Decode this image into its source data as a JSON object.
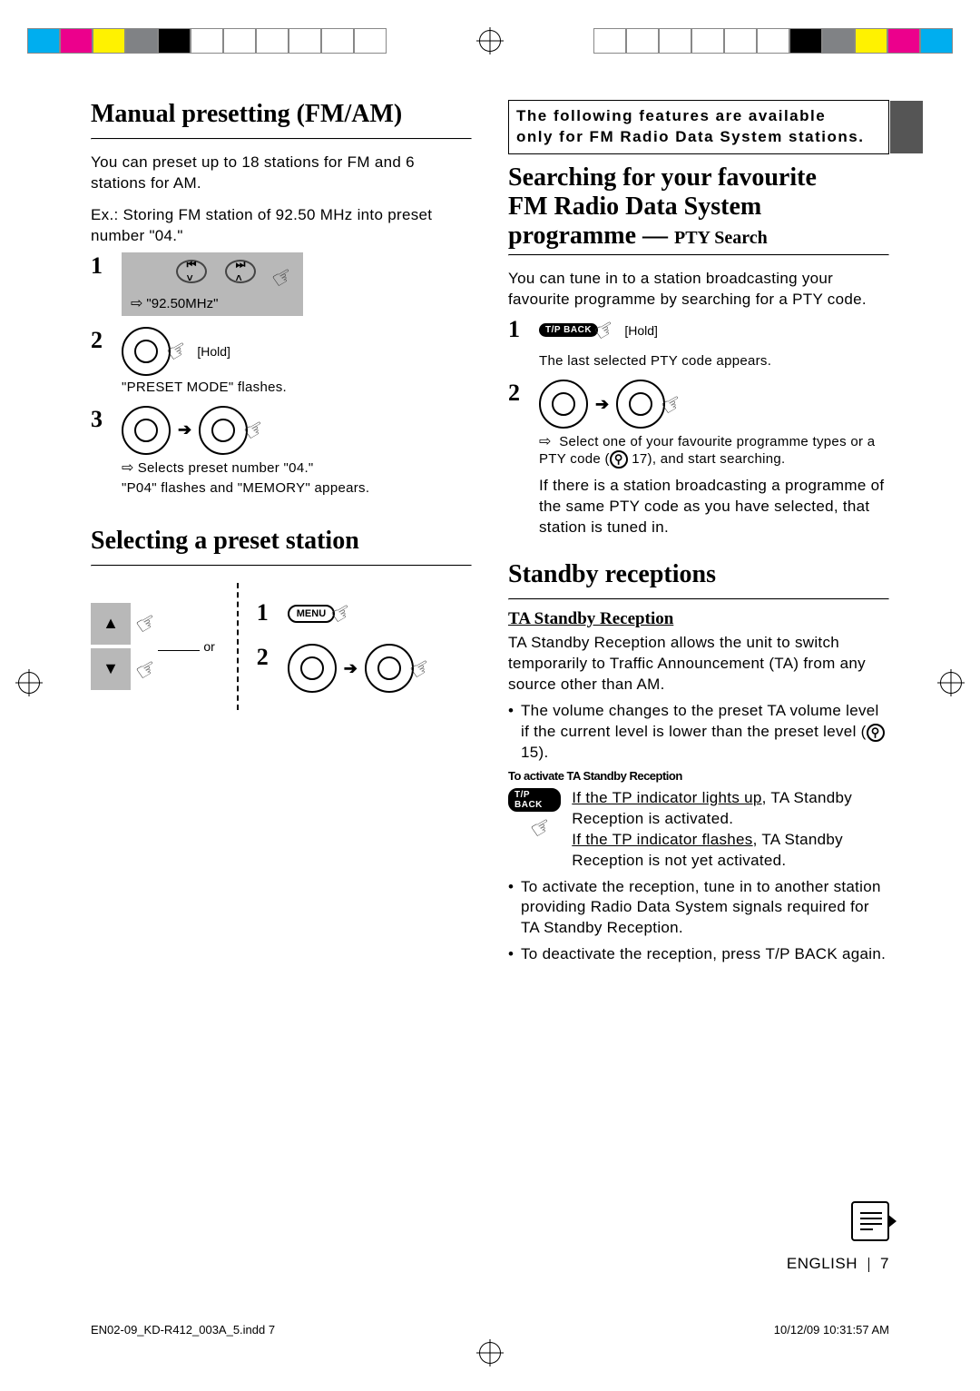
{
  "colorbar_left": [
    "#00aeef",
    "#ec008c",
    "#fff200",
    "#808285",
    "#000000",
    "#ffffff",
    "#ffffff",
    "#ffffff",
    "#ffffff",
    "#ffffff",
    "#ffffff"
  ],
  "colorbar_right": [
    "#ffffff",
    "#ffffff",
    "#ffffff",
    "#ffffff",
    "#ffffff",
    "#ffffff",
    "#000000",
    "#808285",
    "#fff200",
    "#ec008c",
    "#00aeef"
  ],
  "left": {
    "title1": "Manual presetting (FM/AM)",
    "intro1": "You can preset up to 18 stations for FM and 6 stations for AM.",
    "ex": "Ex.: Storing FM station of 92.50 MHz into preset number \"04.\"",
    "freq": "\"92.50MHz\"",
    "hold": "[Hold]",
    "preset_mode": "\"PRESET MODE\" flashes.",
    "step3a": "Selects preset number \"04.\"",
    "step3b": "\"P04\" flashes and \"MEMORY\" appears.",
    "title2": "Selecting a preset station",
    "menu": "MENU",
    "or": "or"
  },
  "right": {
    "banner1": "The following features are available",
    "banner2": "only for FM Radio Data System stations.",
    "title_search_l1": "Searching for your favourite",
    "title_search_l2": "FM Radio Data System",
    "title_search_l3_a": "programme — ",
    "title_search_l3_b": "PTY Search",
    "search_body": "You can tune in to a station broadcasting your favourite programme by searching for a PTY code.",
    "tp": "T/P BACK",
    "hold": "[Hold]",
    "pty_last": "The last selected PTY code appears.",
    "step2a": "Select one of your favourite programme types or a PTY code (",
    "step2b": " 17), and start searching.",
    "step2c": "If there is a station broadcasting a programme of the same PTY code as you have selected, that station is tuned in.",
    "title_standby": "Standby receptions",
    "ta_title": "TA Standby Reception",
    "ta_body": "TA Standby Reception allows the unit to switch temporarily to Traffic Announcement (TA) from any source other than AM.",
    "ta_bul1a": "The volume changes to the preset TA volume level if the current level is lower than the preset level (",
    "ta_bul1b": " 15).",
    "activate_label": "To activate TA Standby Reception",
    "act_l1a": "If the TP indicator lights up",
    "act_l1b": ", TA Standby Reception is activated.",
    "act_l2a": "If the TP indicator flashes",
    "act_l2b": ", TA Standby Reception is not yet activated.",
    "ta_bul2": "To activate the reception, tune in to another station providing Radio Data System signals required for TA Standby Reception.",
    "ta_bul3a": "To deactivate the reception, press ",
    "ta_bul3b": "T/P BACK",
    "ta_bul3c": " again."
  },
  "footer": {
    "lang": "ENGLISH",
    "pagenum": "7",
    "file": "EN02-09_KD-R412_003A_5.indd   7",
    "date": "10/12/09   10:31:57 AM"
  }
}
